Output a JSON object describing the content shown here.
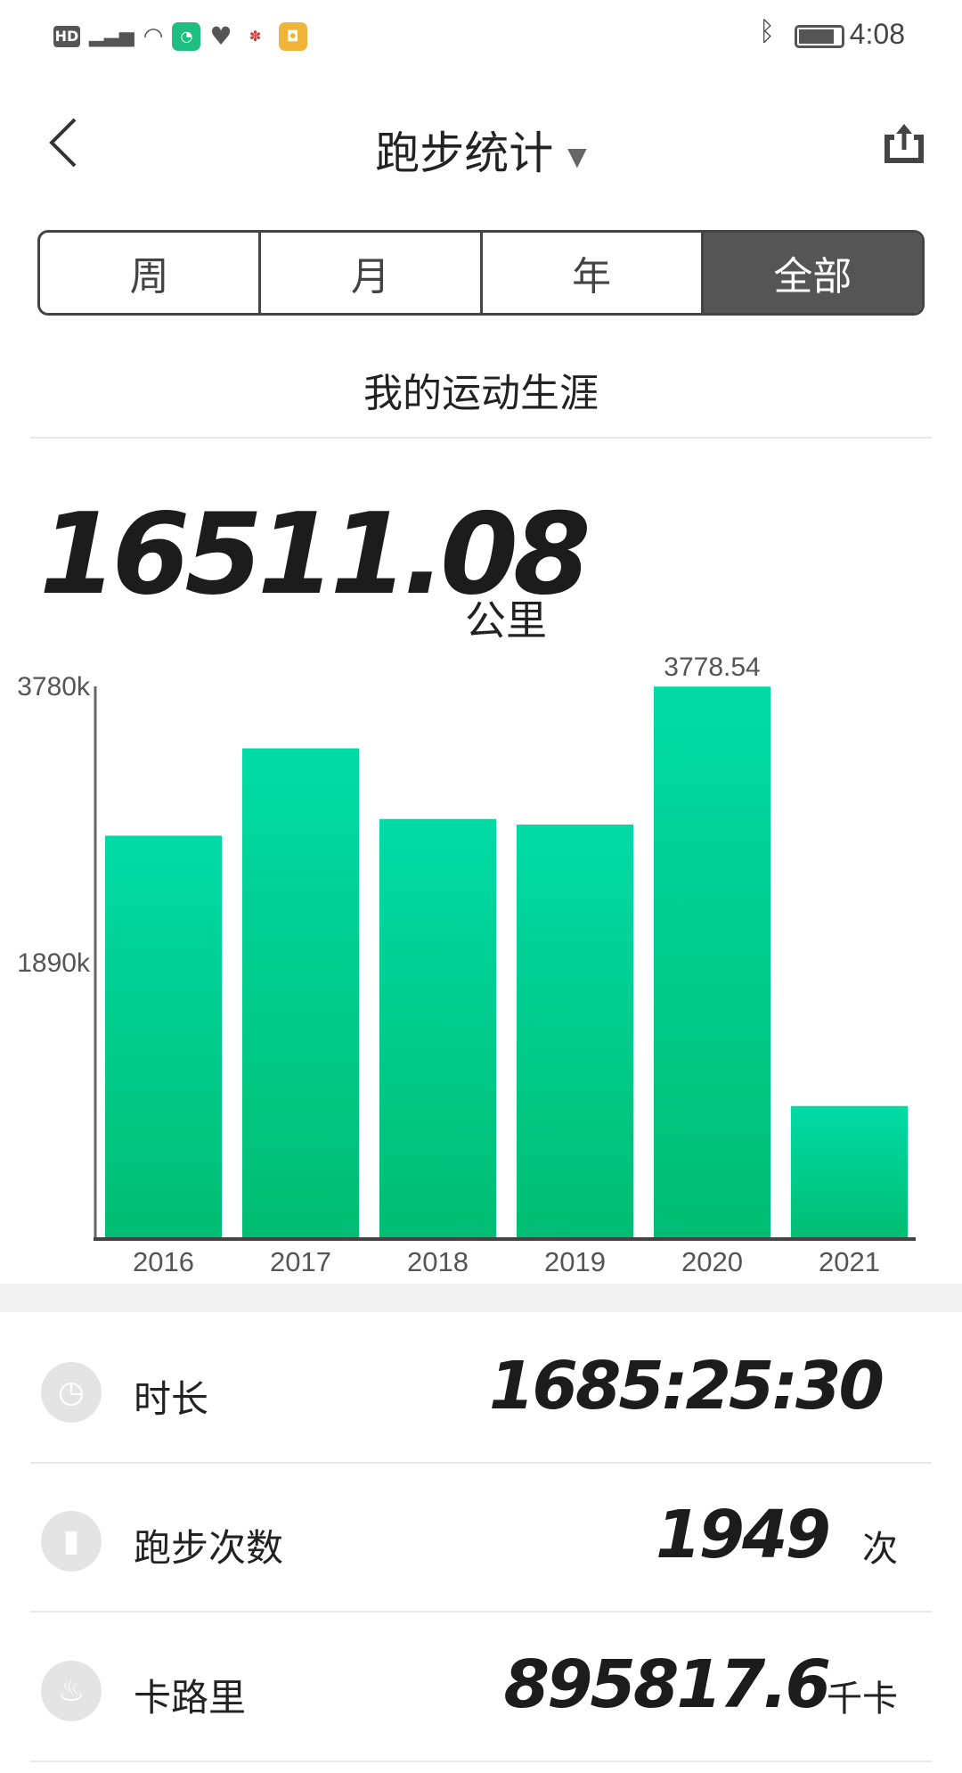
{
  "status_bar": {
    "left_icons": [
      "hd-icon",
      "4g-signal-icon",
      "wifi-icon",
      "app-green-icon",
      "heart-icon",
      "app-red-icon",
      "app-orange-icon"
    ],
    "time": "4:08",
    "hd": "HD"
  },
  "header": {
    "title": "跑步统计",
    "back_icon": "chevron-left-icon",
    "share_icon": "share-icon",
    "dropdown_icon": "chevron-down-icon"
  },
  "tabs": [
    {
      "label": "周"
    },
    {
      "label": "月"
    },
    {
      "label": "年"
    },
    {
      "label": "全部",
      "selected": true
    }
  ],
  "section_title": "我的运动生涯",
  "total": {
    "value": "16511.08",
    "unit": "公里"
  },
  "chart_data": {
    "type": "bar",
    "categories": [
      "2016",
      "2017",
      "2018",
      "2019",
      "2020",
      "2021"
    ],
    "values": [
      2759,
      3356,
      2873,
      2835,
      3778.54,
      910
    ],
    "yticks": [
      "3780k",
      "1890k"
    ],
    "ytick_values": [
      3780,
      1890
    ],
    "ylim": [
      0,
      3780
    ],
    "data_label": "3778.54",
    "grid": false,
    "colors": {
      "bar_top": "#00dba6",
      "bar_bottom": "#00bd72"
    }
  },
  "stats": [
    {
      "icon": "clock-icon",
      "label": "时长",
      "value": "1685:25:30",
      "unit": ""
    },
    {
      "icon": "bar-chart-icon",
      "label": "跑步次数",
      "value": "1949",
      "unit": "次"
    },
    {
      "icon": "flame-icon",
      "label": "卡路里",
      "value": "895817.6",
      "unit": "千卡"
    }
  ]
}
